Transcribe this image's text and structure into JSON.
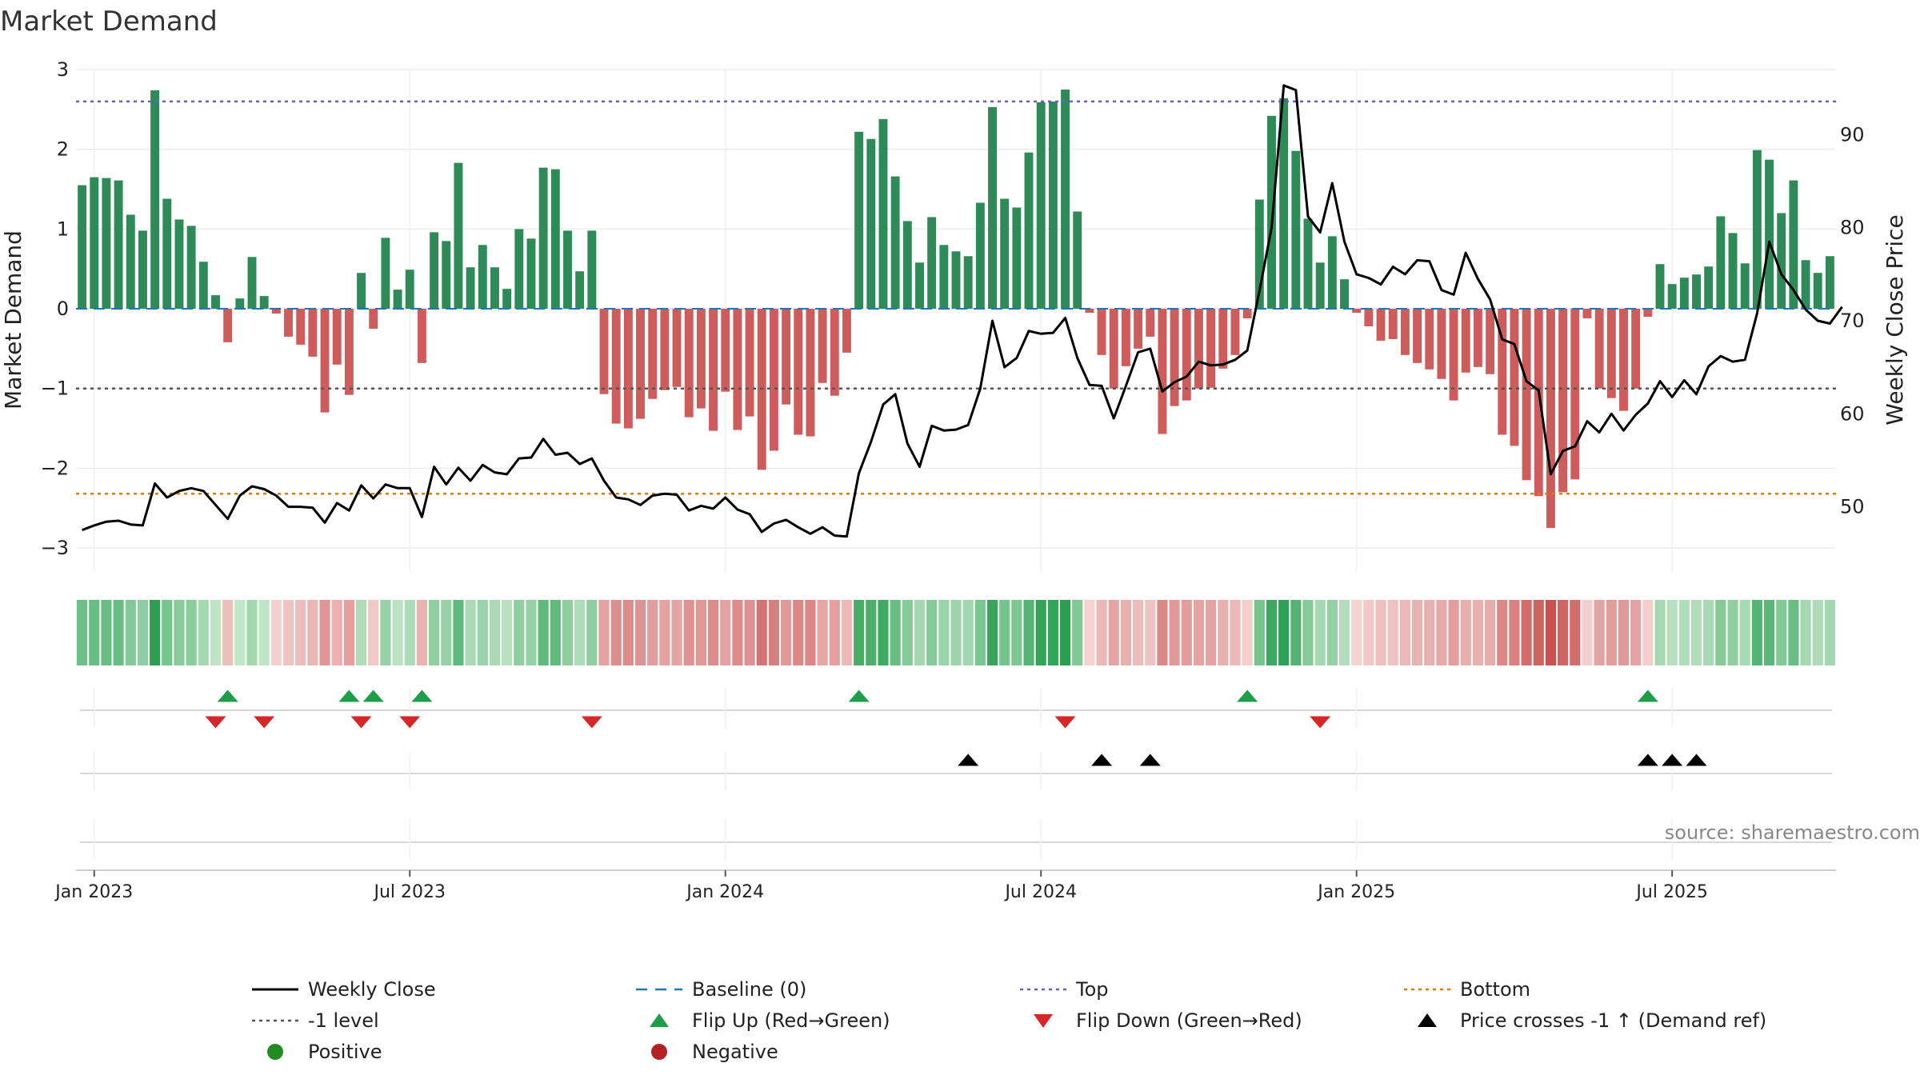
{
  "chart_data": {
    "type": "bar",
    "title": "Market Demand",
    "ylabel_left": "Market Demand",
    "ylabel_right": "Weekly Close Price",
    "ylim_left": [
      -3.3,
      3.0
    ],
    "ylim_right": [
      43,
      97
    ],
    "yticks_left": [
      3,
      2,
      1,
      0,
      -1,
      -2,
      -3
    ],
    "yticks_left_labels": [
      "3",
      "2",
      "1",
      "0",
      "−1",
      "−2",
      "−3"
    ],
    "yticks_right": [
      90,
      80,
      70,
      60,
      50
    ],
    "yticks_right_labels": [
      "90",
      "80",
      "70",
      "60",
      "50"
    ],
    "x_tick_labels": [
      "Jan 2023",
      "Jul 2023",
      "Jan 2024",
      "Jul 2024",
      "Jan 2025",
      "Jul 2025"
    ],
    "x_tick_weeks": [
      1,
      27,
      53,
      79,
      105,
      131
    ],
    "reference_lines": {
      "top": 2.6,
      "bottom": -2.32,
      "minus_one": -1,
      "baseline": 0
    },
    "demand": [
      1.55,
      1.65,
      1.64,
      1.61,
      1.18,
      0.98,
      2.74,
      1.38,
      1.12,
      1.04,
      0.59,
      0.17,
      -0.42,
      0.13,
      0.65,
      0.16,
      -0.06,
      -0.35,
      -0.45,
      -0.6,
      -1.3,
      -0.7,
      -1.08,
      0.45,
      -0.25,
      0.89,
      0.24,
      0.49,
      -0.68,
      0.96,
      0.85,
      1.83,
      0.52,
      0.8,
      0.52,
      0.25,
      1.0,
      0.88,
      1.77,
      1.75,
      0.98,
      0.47,
      0.98,
      -1.07,
      -1.44,
      -1.5,
      -1.38,
      -1.13,
      -1.02,
      -0.98,
      -1.36,
      -1.25,
      -1.53,
      -1.04,
      -1.52,
      -1.35,
      -2.02,
      -1.78,
      -1.2,
      -1.58,
      -1.6,
      -0.93,
      -1.09,
      -0.55,
      2.22,
      2.13,
      2.38,
      1.66,
      1.1,
      0.58,
      1.15,
      0.8,
      0.72,
      0.66,
      1.33,
      2.53,
      1.38,
      1.27,
      1.96,
      2.59,
      2.6,
      2.75,
      1.22,
      -0.05,
      -0.58,
      -1.0,
      -0.72,
      -0.5,
      -0.35,
      -1.57,
      -1.22,
      -1.15,
      -1.0,
      -0.99,
      -0.75,
      -0.58,
      -0.12,
      1.37,
      2.42,
      2.64,
      1.98,
      1.13,
      0.58,
      0.91,
      0.37,
      -0.05,
      -0.22,
      -0.4,
      -0.38,
      -0.58,
      -0.68,
      -0.76,
      -0.88,
      -1.15,
      -0.8,
      -0.73,
      -0.82,
      -1.58,
      -1.72,
      -2.15,
      -2.35,
      -2.75,
      -2.3,
      -2.14,
      -0.12,
      -1.0,
      -1.12,
      -1.28,
      -1.0,
      -0.1,
      0.56,
      0.31,
      0.39,
      0.43,
      0.53,
      1.16,
      0.95,
      0.57,
      1.99,
      1.87,
      1.2,
      1.61,
      0.61,
      0.45,
      0.66
    ],
    "weekly_close": [
      47.5,
      48.0,
      48.4,
      48.5,
      48.1,
      48.0,
      52.5,
      51.0,
      51.7,
      52.0,
      51.7,
      50.2,
      48.7,
      51.2,
      52.2,
      51.9,
      51.2,
      50.0,
      50.0,
      49.9,
      48.3,
      50.4,
      49.6,
      52.3,
      50.9,
      52.4,
      52.0,
      52.0,
      48.9,
      54.3,
      52.4,
      54.2,
      52.8,
      54.5,
      53.7,
      53.5,
      55.2,
      55.3,
      57.3,
      55.6,
      55.8,
      54.6,
      55.2,
      52.8,
      51.0,
      50.8,
      50.2,
      51.2,
      51.4,
      51.3,
      49.6,
      50.1,
      49.8,
      51.0,
      49.7,
      49.2,
      47.3,
      48.2,
      48.6,
      47.8,
      47.1,
      47.8,
      46.9,
      46.8,
      53.6,
      57.0,
      61.0,
      62.1,
      56.8,
      54.3,
      58.7,
      58.2,
      58.3,
      58.8,
      62.7,
      70.0,
      65.0,
      66.0,
      68.9,
      68.6,
      68.7,
      70.3,
      66.0,
      63.1,
      63.0,
      59.5,
      63.0,
      66.6,
      67.0,
      62.4,
      63.4,
      64.0,
      65.6,
      65.2,
      65.3,
      65.8,
      66.8,
      73.2,
      80.0,
      95.3,
      94.8,
      81.2,
      79.5,
      84.8,
      78.5,
      75.0,
      74.6,
      73.9,
      75.8,
      75.0,
      76.5,
      76.4,
      73.3,
      72.8,
      77.3,
      74.5,
      72.3,
      68.0,
      67.5,
      63.5,
      62.5,
      53.5,
      56.0,
      56.5,
      59.2,
      58.0,
      60.0,
      58.2,
      59.9,
      61.1,
      63.5,
      61.8,
      63.6,
      62.1,
      65.1,
      66.2,
      65.6,
      65.8,
      70.8,
      78.5,
      75.0,
      73.3,
      71.2,
      70.0,
      69.7,
      71.5
    ],
    "flip_up_weeks": [
      12,
      22,
      24,
      28,
      64,
      96,
      129
    ],
    "flip_down_weeks": [
      11,
      15,
      23,
      27,
      42,
      81,
      102
    ],
    "price_cross_weeks": [
      73,
      84,
      88,
      129,
      131,
      133
    ],
    "source": "source: sharemaestro.com",
    "colors": {
      "positive": "#2e8b57",
      "negative": "#cd5c5c",
      "price": "#000000",
      "baseline": "#1f77b4",
      "top": "#6a5acd",
      "bottom": "#e07b00",
      "minus_one": "#555555",
      "flip_up": "#1f9e4a",
      "flip_down": "#d62728",
      "cross": "#000000",
      "legend_positive_dot": "#228b22",
      "legend_negative_dot": "#b22222"
    },
    "legend": [
      {
        "label": "Weekly Close",
        "kind": "line"
      },
      {
        "label": "Baseline (0)",
        "kind": "dash-baseline"
      },
      {
        "label": "Top",
        "kind": "dot-top"
      },
      {
        "label": "Bottom",
        "kind": "dot-bottom"
      },
      {
        "label": "-1 level",
        "kind": "dot-minus"
      },
      {
        "label": "Flip Up (Red→Green)",
        "kind": "tri-up-green"
      },
      {
        "label": "Flip Down (Green→Red)",
        "kind": "tri-down-red"
      },
      {
        "label": "Price crosses -1 ↑ (Demand ref)",
        "kind": "tri-up-black"
      },
      {
        "label": "Positive",
        "kind": "dot-green"
      },
      {
        "label": "Negative",
        "kind": "dot-red"
      }
    ]
  }
}
